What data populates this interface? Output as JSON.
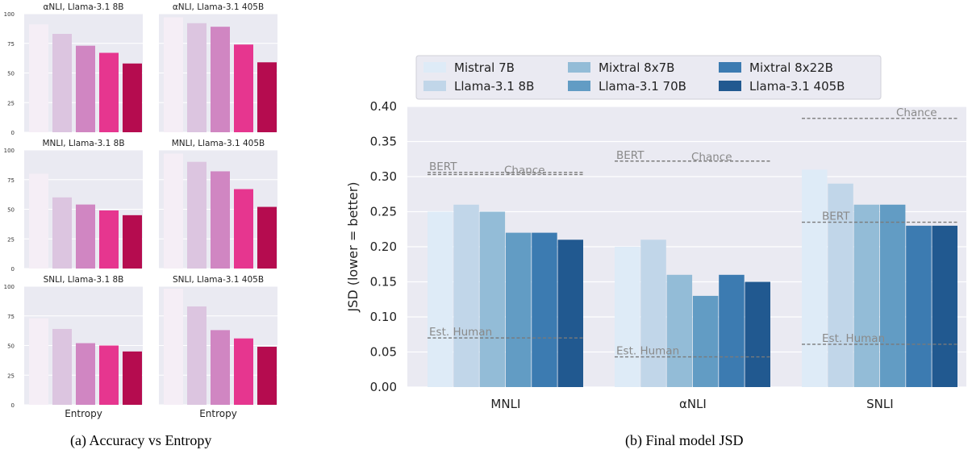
{
  "captions": {
    "left": "(a) Accuracy vs Entropy",
    "right": "(b) Final model JSD"
  },
  "chart_data": [
    {
      "type": "bar",
      "panel": "accuracy",
      "xlabel_shared": "Entropy",
      "yticks": [
        "0",
        "25",
        "50",
        "75",
        "100"
      ],
      "ylim": [
        0,
        100
      ],
      "bar_colors": [
        "#f5eef6",
        "#dcc5e0",
        "#d086c2",
        "#e6368f",
        "#b50c4f"
      ],
      "subplots": [
        {
          "title": "αNLI, Llama-3.1 8B",
          "values": [
            91,
            83,
            73,
            67,
            58
          ]
        },
        {
          "title": "αNLI, Llama-3.1 405B",
          "values": [
            97,
            92,
            89,
            74,
            59
          ]
        },
        {
          "title": "MNLI, Llama-3.1 8B",
          "values": [
            80,
            60,
            54,
            49,
            45
          ]
        },
        {
          "title": "MNLI, Llama-3.1 405B",
          "values": [
            97,
            90,
            82,
            67,
            52
          ]
        },
        {
          "title": "SNLI, Llama-3.1 8B",
          "values": [
            73,
            64,
            52,
            50,
            45
          ]
        },
        {
          "title": "SNLI, Llama-3.1 405B",
          "values": [
            98,
            83,
            63,
            56,
            49
          ]
        }
      ]
    },
    {
      "type": "bar",
      "panel": "jsd",
      "ylabel": "JSD (lower = better)",
      "ylim": [
        0,
        0.4
      ],
      "yticks": [
        "0.00",
        "0.05",
        "0.10",
        "0.15",
        "0.20",
        "0.25",
        "0.30",
        "0.35",
        "0.40"
      ],
      "categories": [
        "MNLI",
        "αNLI",
        "SNLI"
      ],
      "legend_position": "top",
      "series": [
        {
          "name": "Mistral 7B",
          "color": "#deebf7",
          "values": [
            0.25,
            0.2,
            0.31
          ]
        },
        {
          "name": "Llama-3.1 8B",
          "color": "#c1d6e9",
          "values": [
            0.26,
            0.21,
            0.29
          ]
        },
        {
          "name": "Mixtral 8x7B",
          "color": "#93bcd7",
          "values": [
            0.25,
            0.16,
            0.26
          ]
        },
        {
          "name": "Llama-3.1 70B",
          "color": "#629cc4",
          "values": [
            0.22,
            0.13,
            0.26
          ]
        },
        {
          "name": "Mixtral 8x22B",
          "color": "#3c7bb1",
          "values": [
            0.22,
            0.16,
            0.23
          ]
        },
        {
          "name": "Llama-3.1 405B",
          "color": "#215990",
          "values": [
            0.21,
            0.15,
            0.23
          ]
        }
      ],
      "reference_lines": [
        {
          "category": "MNLI",
          "label": "BERT",
          "value": 0.306
        },
        {
          "category": "MNLI",
          "label": "Chance",
          "value": 0.303
        },
        {
          "category": "MNLI",
          "label": "Est. Human",
          "value": 0.07
        },
        {
          "category": "αNLI",
          "label": "BERT",
          "value": 0.322
        },
        {
          "category": "αNLI",
          "label": "Chance",
          "value": 0.322
        },
        {
          "category": "αNLI",
          "label": "Est. Human",
          "value": 0.043
        },
        {
          "category": "SNLI",
          "label": "Chance",
          "value": 0.383
        },
        {
          "category": "SNLI",
          "label": "BERT",
          "value": 0.235
        },
        {
          "category": "SNLI",
          "label": "Est. Human",
          "value": 0.061
        }
      ]
    }
  ]
}
